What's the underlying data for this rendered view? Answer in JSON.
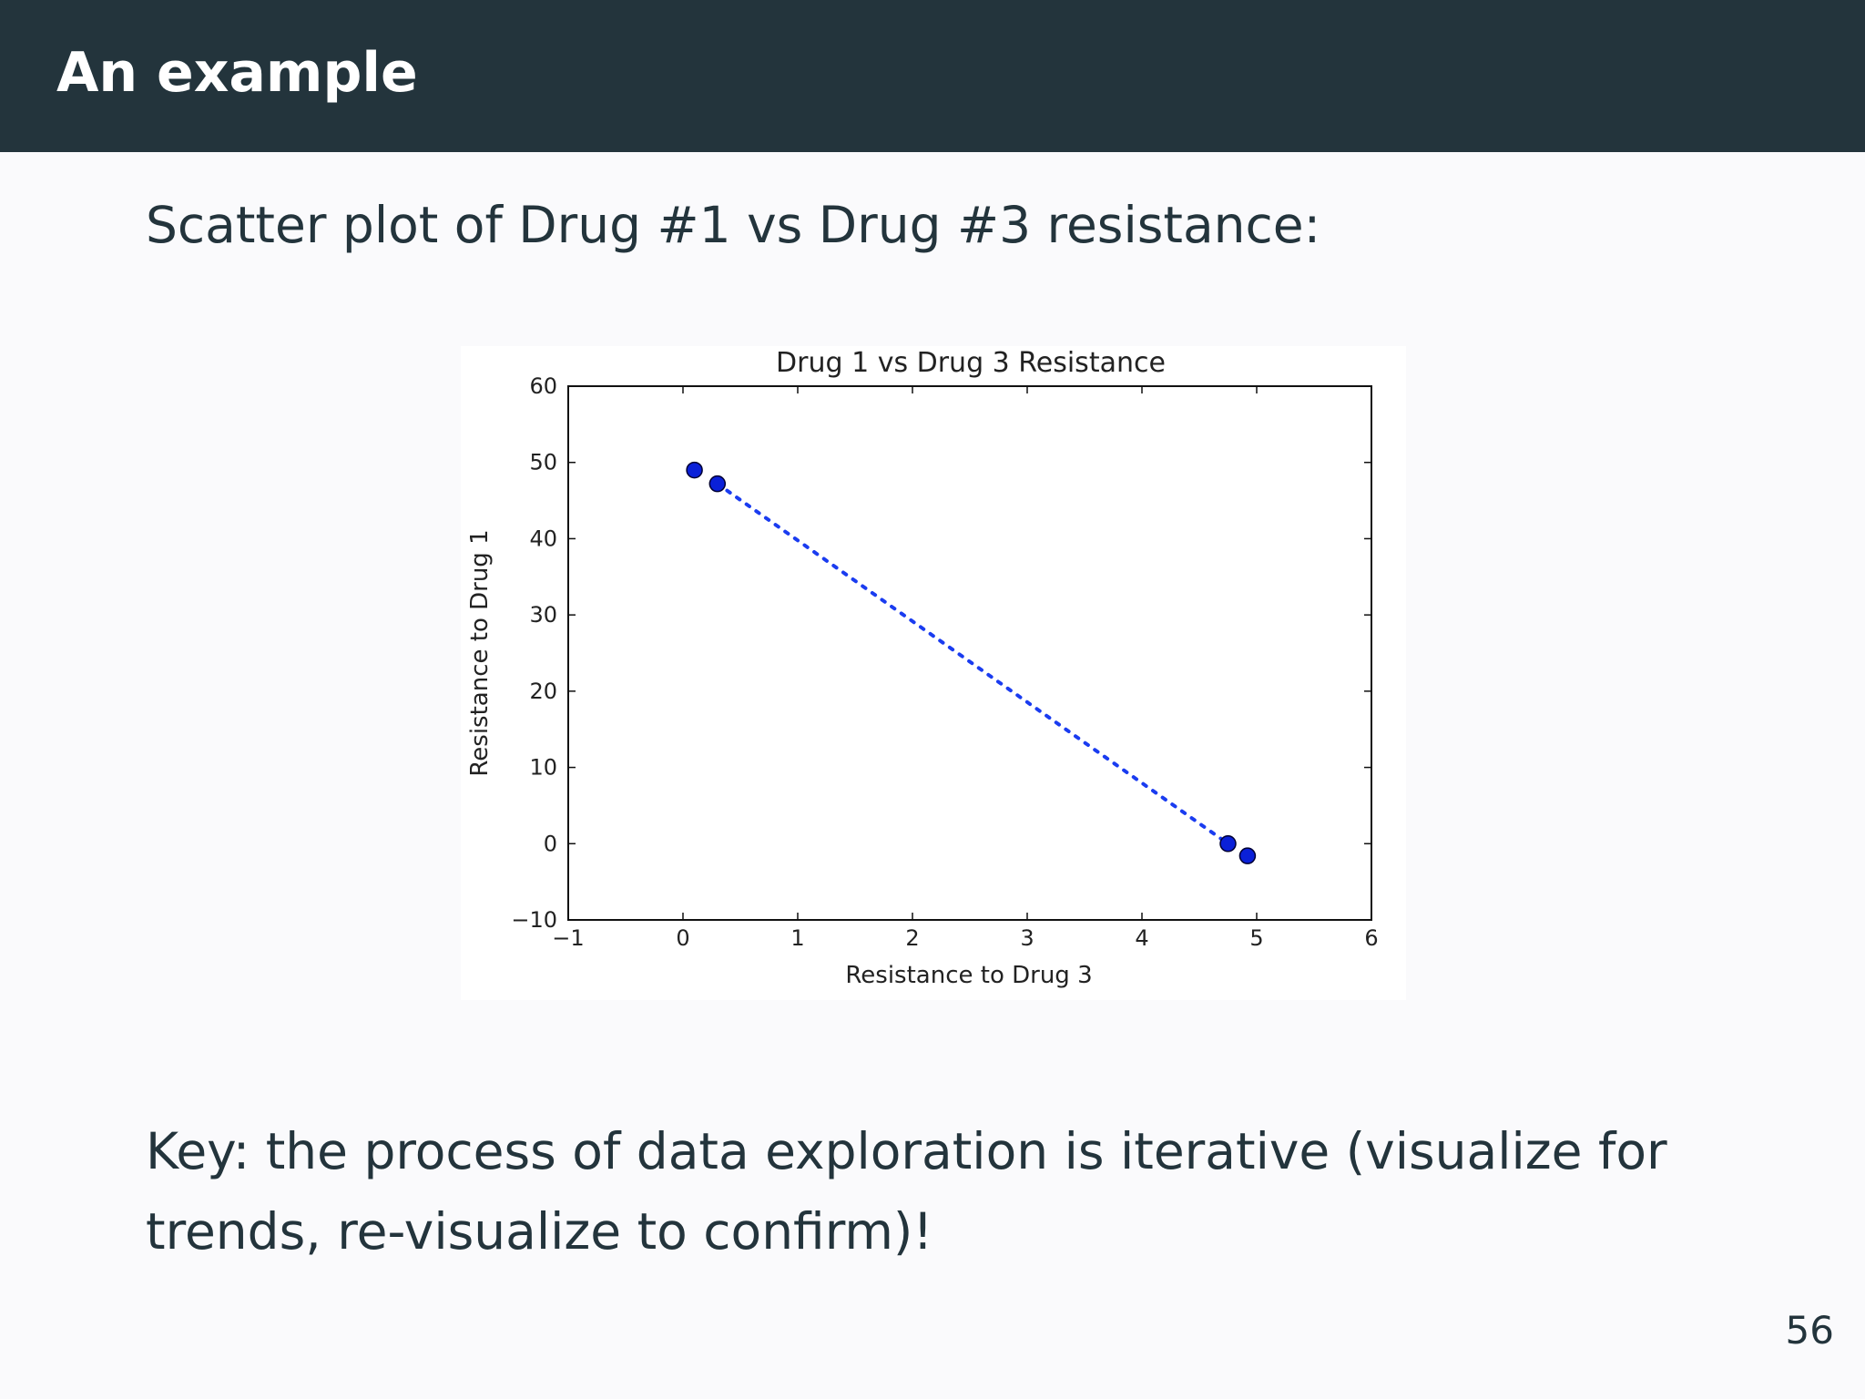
{
  "slide": {
    "title": "An example",
    "intro_text": "Scatter plot of Drug #1 vs Drug #3 resistance:",
    "key_text": "Key: the process of data exploration is iterative (visualize for trends, re-visualize to confirm)!",
    "page_number": "56"
  },
  "colors": {
    "header_background": "#23343c",
    "slide_background": "#fafafc",
    "marker_fill": "#0a20d8",
    "line_color": "#1a3cf0"
  },
  "chart_data": {
    "type": "scatter",
    "title": "Drug 1 vs Drug 3 Resistance",
    "xlabel": "Resistance to Drug 3",
    "ylabel": "Resistance to Drug 1",
    "xlim": [
      -1,
      6
    ],
    "ylim": [
      -10,
      60
    ],
    "xticks": [
      -1,
      0,
      1,
      2,
      3,
      4,
      5,
      6
    ],
    "yticks": [
      -10,
      0,
      10,
      20,
      30,
      40,
      50,
      60
    ],
    "xtick_labels": [
      "−1",
      "0",
      "1",
      "2",
      "3",
      "4",
      "5",
      "6"
    ],
    "ytick_labels": [
      "−10",
      "0",
      "10",
      "20",
      "30",
      "40",
      "50",
      "60"
    ],
    "grid": false,
    "series": [
      {
        "marker": "circle",
        "x": [
          0.1,
          0.3,
          4.75,
          4.92
        ],
        "y": [
          49,
          47.2,
          0,
          -1.6
        ]
      }
    ],
    "trend_line": {
      "style": "dotted",
      "x": [
        0.3,
        4.75
      ],
      "y": [
        47.2,
        0
      ]
    }
  }
}
